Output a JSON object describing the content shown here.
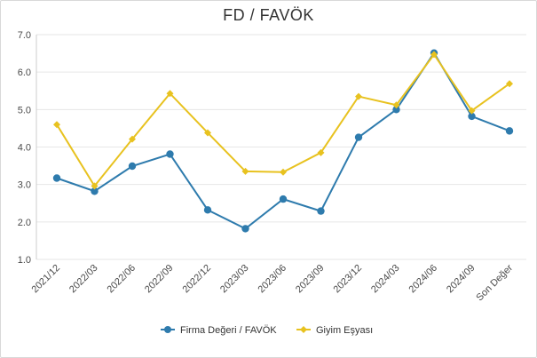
{
  "chart_data": {
    "type": "line",
    "title": "FD / FAVÖK",
    "categories": [
      "2021/12",
      "2022/03",
      "2022/06",
      "2022/09",
      "2022/12",
      "2023/03",
      "2023/06",
      "2023/09",
      "2023/12",
      "2024/03",
      "2024/06",
      "2024/09",
      "Son Değer"
    ],
    "series": [
      {
        "name": "Firma Değeri / FAVÖK",
        "color": "#2e7bad",
        "marker": "circle",
        "values": [
          3.17,
          2.82,
          3.49,
          3.81,
          2.32,
          1.82,
          2.61,
          2.29,
          4.26,
          5.0,
          6.51,
          4.82,
          4.43
        ]
      },
      {
        "name": "Giyim Eşyası",
        "color": "#e8c21f",
        "marker": "diamond",
        "values": [
          4.6,
          2.96,
          4.21,
          5.43,
          4.38,
          3.35,
          3.33,
          3.85,
          5.35,
          5.12,
          6.47,
          4.97,
          5.69
        ]
      }
    ],
    "yticks": [
      "1.0",
      "2.0",
      "3.0",
      "4.0",
      "5.0",
      "6.0",
      "7.0"
    ],
    "ylim": [
      1.0,
      7.0
    ],
    "grid": true,
    "legend_position": "bottom"
  }
}
